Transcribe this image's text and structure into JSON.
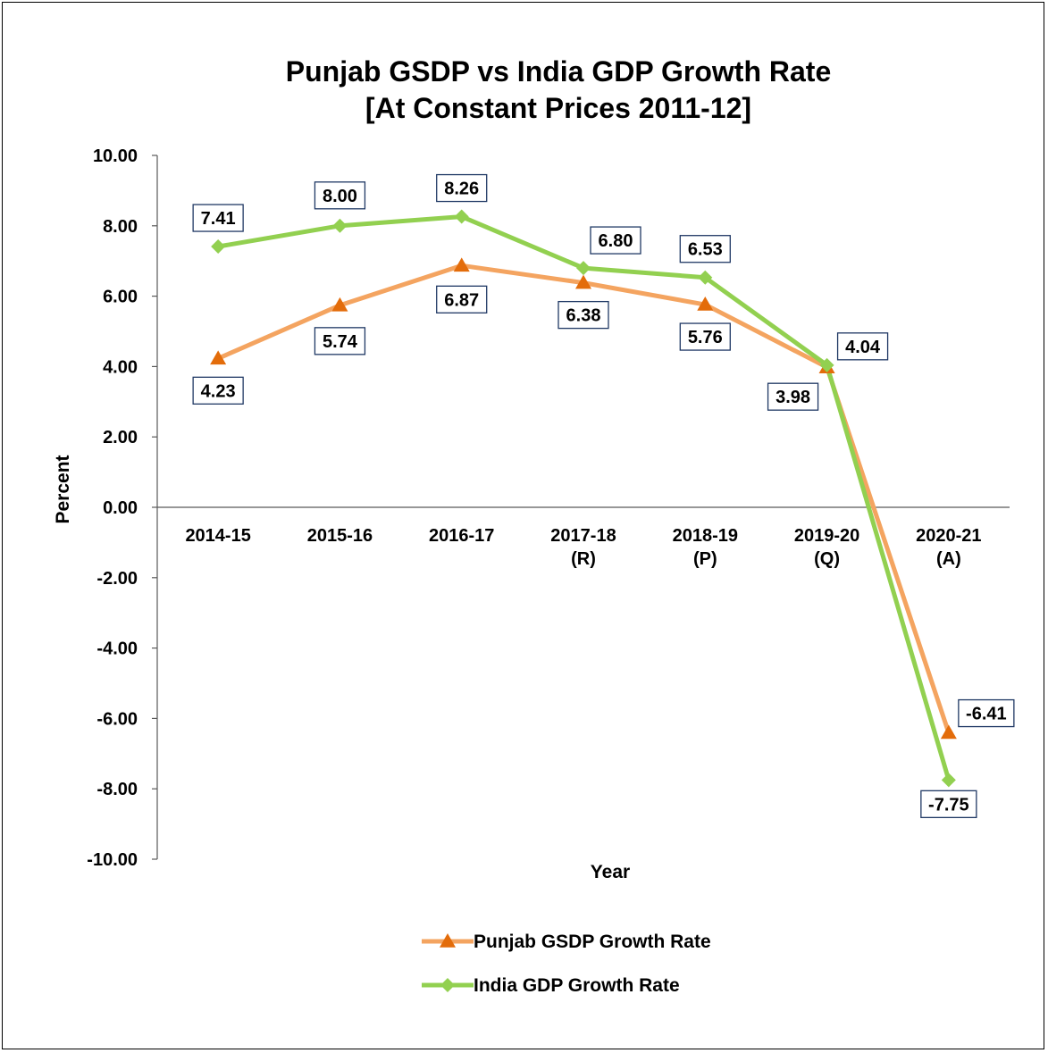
{
  "chart_data": {
    "type": "line",
    "title_lines": [
      "Punjab GSDP vs India GDP Growth Rate",
      "[At Constant Prices 2011-12]"
    ],
    "xlabel": "Year",
    "ylabel": "Percent",
    "ylim": [
      -10,
      10
    ],
    "ytick_step": 2,
    "y_tick_labels": [
      "10.00",
      "8.00",
      "6.00",
      "4.00",
      "2.00",
      "0.00",
      "-2.00",
      "-4.00",
      "-6.00",
      "-8.00",
      "-10.00"
    ],
    "categories": [
      [
        "2014-15"
      ],
      [
        "2015-16"
      ],
      [
        "2016-17"
      ],
      [
        "2017-18",
        "(R)"
      ],
      [
        "2018-19",
        "(P)"
      ],
      [
        "2019-20",
        "(Q)"
      ],
      [
        "2020-21",
        "(A)"
      ]
    ],
    "grid": false,
    "legend_position": "bottom",
    "series": [
      {
        "name": "Punjab GSDP Growth Rate",
        "color": "#f4a460",
        "marker_color": "#e36c0a",
        "marker": "triangle",
        "values": [
          4.23,
          5.74,
          6.87,
          6.38,
          5.76,
          3.98,
          -6.41
        ],
        "labels": [
          "4.23",
          "5.74",
          "6.87",
          "6.38",
          "5.76",
          "3.98",
          "-6.41"
        ]
      },
      {
        "name": "India GDP Growth Rate",
        "color": "#92d050",
        "marker_color": "#92d050",
        "marker": "diamond",
        "values": [
          7.41,
          8.0,
          8.26,
          6.8,
          6.53,
          4.04,
          -7.75
        ],
        "labels": [
          "7.41",
          "8.00",
          "8.26",
          "6.80",
          "6.53",
          "4.04",
          "-7.75"
        ]
      }
    ],
    "label_border_color": "#1f3864"
  }
}
